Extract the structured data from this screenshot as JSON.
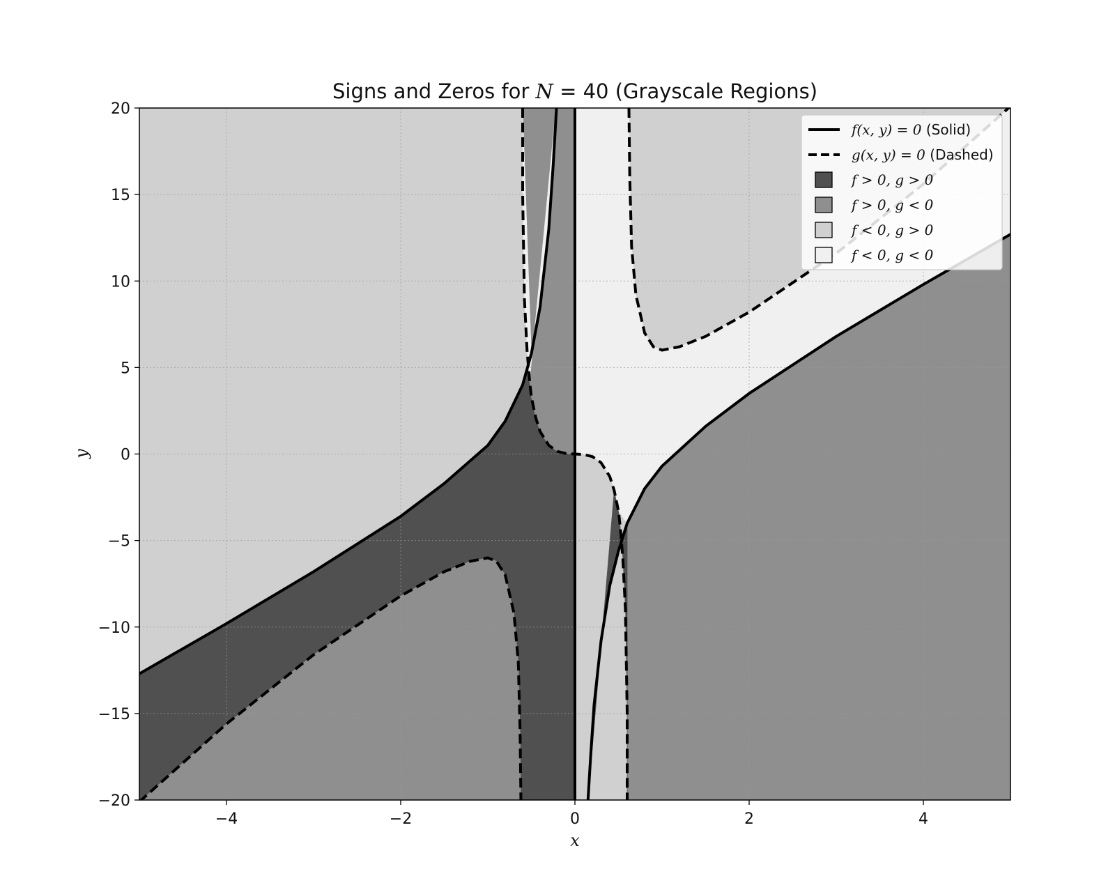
{
  "chart_data": {
    "type": "area",
    "title": "Signs and Zeros for N = 40 (Grayscale Regions)",
    "title_parts": {
      "prefix": "Signs and Zeros for ",
      "math": "N",
      "suffix": " = 40 (Grayscale Regions)"
    },
    "xlabel": "x",
    "ylabel": "y",
    "xlim": [
      -5,
      5
    ],
    "ylim": [
      -20,
      20
    ],
    "xticks": [
      -4,
      -2,
      0,
      2,
      4
    ],
    "xtick_labels": [
      "−4",
      "−2",
      "0",
      "2",
      "4"
    ],
    "yticks": [
      -20,
      -15,
      -10,
      -5,
      0,
      5,
      10,
      15,
      20
    ],
    "ytick_labels": [
      "−20",
      "−15",
      "−10",
      "−5",
      "0",
      "5",
      "10",
      "15",
      "20"
    ],
    "grid": true,
    "legend_position": "top-right",
    "colors": {
      "f_pos_g_pos": "#505050",
      "f_pos_g_neg": "#8f8f8f",
      "f_neg_g_pos": "#d0d0d0",
      "f_neg_g_neg": "#f0f0f0",
      "curve": "#000000"
    },
    "legend": [
      {
        "kind": "line",
        "style": "solid",
        "math": "f(x, y) = 0",
        "text": " (Solid)"
      },
      {
        "kind": "line",
        "style": "dashed",
        "math": "g(x, y) = 0",
        "text": " (Dashed)"
      },
      {
        "kind": "patch",
        "color": "#505050",
        "math": "f > 0, g > 0",
        "text": ""
      },
      {
        "kind": "patch",
        "color": "#8f8f8f",
        "math": "f > 0, g < 0",
        "text": ""
      },
      {
        "kind": "patch",
        "color": "#d0d0d0",
        "math": "f < 0, g > 0",
        "text": ""
      },
      {
        "kind": "patch",
        "color": "#f0f0f0",
        "math": "f < 0, g < 0",
        "text": ""
      }
    ],
    "series": [
      {
        "name": "f(x, y) = 0 (Solid)",
        "style": "solid",
        "branches": [
          {
            "x": [
              -5,
              -4,
              -3,
              -2,
              -1.5,
              -1,
              -0.8,
              -0.6,
              -0.5,
              -0.4,
              -0.3,
              -0.25,
              -0.2
            ],
            "y": [
              -12.7,
              -9.8,
              -6.8,
              -3.6,
              -1.7,
              0.5,
              1.9,
              4.0,
              5.8,
              8.5,
              13.0,
              16.7,
              21.0
            ]
          },
          {
            "x": [
              0,
              0
            ],
            "y": [
              -20,
              20
            ]
          },
          {
            "x": [
              0.15,
              0.18,
              0.22,
              0.3,
              0.4,
              0.5,
              0.6,
              0.8,
              1,
              1.5,
              2,
              3,
              4,
              5
            ],
            "y": [
              -20,
              -17.5,
              -14.5,
              -10.8,
              -7.6,
              -5.6,
              -4.0,
              -2.0,
              -0.7,
              1.6,
              3.5,
              6.8,
              9.8,
              12.7
            ]
          }
        ]
      },
      {
        "name": "g(x, y) = 0 (Dashed)",
        "style": "dashed",
        "branches": [
          {
            "x": [
              -0.6,
              -0.6,
              -0.58,
              -0.55,
              -0.52,
              -0.5,
              -0.45,
              -0.4,
              -0.3,
              -0.2,
              -0.1,
              0,
              0.1,
              0.2,
              0.3,
              0.4,
              0.45,
              0.5,
              0.52,
              0.55,
              0.58,
              0.6,
              0.6
            ],
            "y": [
              20,
              15,
              9.0,
              6.0,
              4.2,
              3.3,
              2.1,
              1.3,
              0.5,
              0.15,
              0.03,
              0,
              -0.03,
              -0.15,
              -0.5,
              -1.3,
              -2.1,
              -3.3,
              -4.2,
              -6.0,
              -9.0,
              -15,
              -20
            ]
          },
          {
            "x": [
              0.62,
              0.63,
              0.65,
              0.7,
              0.8,
              0.9,
              1.0,
              1.2,
              1.5,
              2,
              3,
              4,
              5
            ],
            "y": [
              20,
              16,
              12,
              9.2,
              7.0,
              6.2,
              6.0,
              6.2,
              6.8,
              8.2,
              11.6,
              15.6,
              20.1
            ]
          },
          {
            "x": [
              -5,
              -4,
              -3,
              -2,
              -1.5,
              -1.2,
              -1.0,
              -0.9,
              -0.8,
              -0.7,
              -0.65,
              -0.63,
              -0.62
            ],
            "y": [
              -20.1,
              -15.6,
              -11.6,
              -8.2,
              -6.8,
              -6.2,
              -6.0,
              -6.2,
              -7.0,
              -9.2,
              -12,
              -16,
              -20
            ]
          }
        ]
      }
    ]
  }
}
